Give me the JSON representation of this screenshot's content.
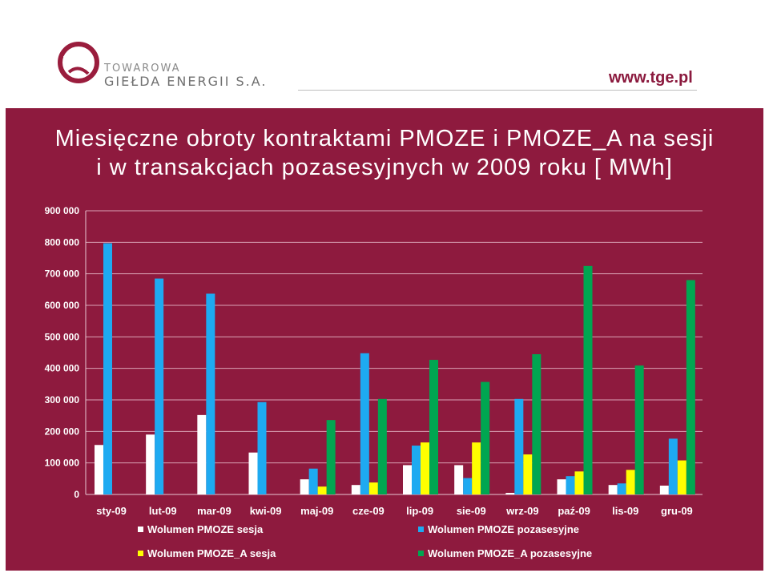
{
  "header": {
    "brand_line1": "TOWAROWA",
    "brand_line2": "GIEŁDA ENERGII S.A.",
    "url": "www.tge.pl",
    "logo_icon": "tge-logo-icon"
  },
  "colors": {
    "panel": "#8e1a3e",
    "url": "#8b1a3e",
    "logo": "#9a1d3d"
  },
  "chart_data": {
    "type": "bar",
    "title_lines": [
      "Miesięczne obroty kontraktami PMOZE i  PMOZE_A na sesji",
      "i w transakcjach pozasesyjnych w 2009 roku [ MWh]"
    ],
    "categories": [
      "sty-09",
      "lut-09",
      "mar-09",
      "kwi-09",
      "maj-09",
      "cze-09",
      "lip-09",
      "sie-09",
      "wrz-09",
      "paź-09",
      "lis-09",
      "gru-09"
    ],
    "ylim": [
      0,
      900000
    ],
    "yticks": [
      0,
      100000,
      200000,
      300000,
      400000,
      500000,
      600000,
      700000,
      800000,
      900000
    ],
    "ytick_labels": [
      "0",
      "100 000",
      "200 000",
      "300 000",
      "400 000",
      "500 000",
      "600 000",
      "700 000",
      "800 000",
      "900 000"
    ],
    "grid": true,
    "legend_position": "bottom",
    "series": [
      {
        "name": "Wolumen PMOZE sesja",
        "color": "#ffffff",
        "values": [
          157000,
          190000,
          252000,
          133000,
          48000,
          30000,
          93000,
          93000,
          5000,
          48000,
          30000,
          28000
        ]
      },
      {
        "name": "Wolumen PMOZE pozasesyjne",
        "color": "#1eaaf1",
        "values": [
          797000,
          685000,
          637000,
          293000,
          82000,
          448000,
          155000,
          52000,
          303000,
          58000,
          35000,
          177000
        ]
      },
      {
        "name": "Wolumen PMOZE_A sesja",
        "color": "#ffff00",
        "values": [
          0,
          0,
          0,
          0,
          25000,
          38000,
          165000,
          165000,
          127000,
          73000,
          78000,
          108000
        ]
      },
      {
        "name": "Wolumen PMOZE_A pozasesyjne",
        "color": "#00a651",
        "values": [
          0,
          0,
          0,
          0,
          236000,
          303000,
          427000,
          357000,
          445000,
          725000,
          409000,
          680000
        ]
      }
    ]
  }
}
